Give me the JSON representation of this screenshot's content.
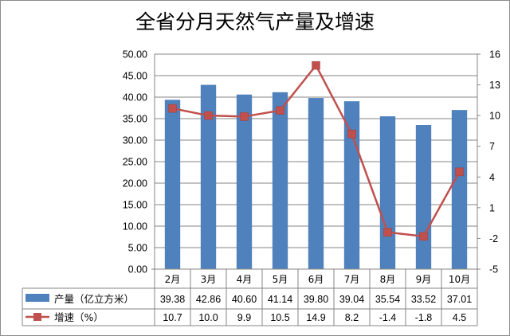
{
  "title": "全省分月天然气产量及增速",
  "colors": {
    "bar": "#4f81bd",
    "line": "#c0504d",
    "grid": "#868686",
    "axis": "#868686"
  },
  "chart_data": {
    "type": "bar",
    "title": "全省分月天然气产量及增速",
    "categories": [
      "2月",
      "3月",
      "4月",
      "5月",
      "6月",
      "7月",
      "8月",
      "9月",
      "10月"
    ],
    "series": [
      {
        "name": "产量（亿立方米）",
        "type": "bar",
        "axis": "left",
        "values": [
          39.38,
          42.86,
          40.6,
          41.14,
          39.8,
          39.04,
          35.54,
          33.52,
          37.01
        ],
        "display": [
          "39.38",
          "42.86",
          "40.60",
          "41.14",
          "39.80",
          "39.04",
          "35.54",
          "33.52",
          "37.01"
        ]
      },
      {
        "name": "增速（%）",
        "type": "line",
        "axis": "right",
        "values": [
          10.7,
          10.0,
          9.9,
          10.5,
          14.9,
          8.2,
          -1.4,
          -1.8,
          4.5
        ],
        "display": [
          "10.7",
          "10.0",
          "9.9",
          "10.5",
          "14.9",
          "8.2",
          "-1.4",
          "-1.8",
          "4.5"
        ]
      }
    ],
    "left_axis": {
      "min": 0,
      "max": 50,
      "ticks": [
        0,
        5,
        10,
        15,
        20,
        25,
        30,
        35,
        40,
        45,
        50
      ],
      "tick_labels": [
        "0.00",
        "5.00",
        "10.00",
        "15.00",
        "20.00",
        "25.00",
        "30.00",
        "35.00",
        "40.00",
        "45.00",
        "50.00"
      ]
    },
    "right_axis": {
      "min": -5,
      "max": 16,
      "ticks": [
        -5,
        -2,
        1,
        4,
        7,
        10,
        13,
        16
      ],
      "tick_labels": [
        "-5",
        "-2",
        "1",
        "4",
        "7",
        "10",
        "13",
        "16"
      ]
    },
    "grid": true,
    "legend": "data-table-left"
  }
}
